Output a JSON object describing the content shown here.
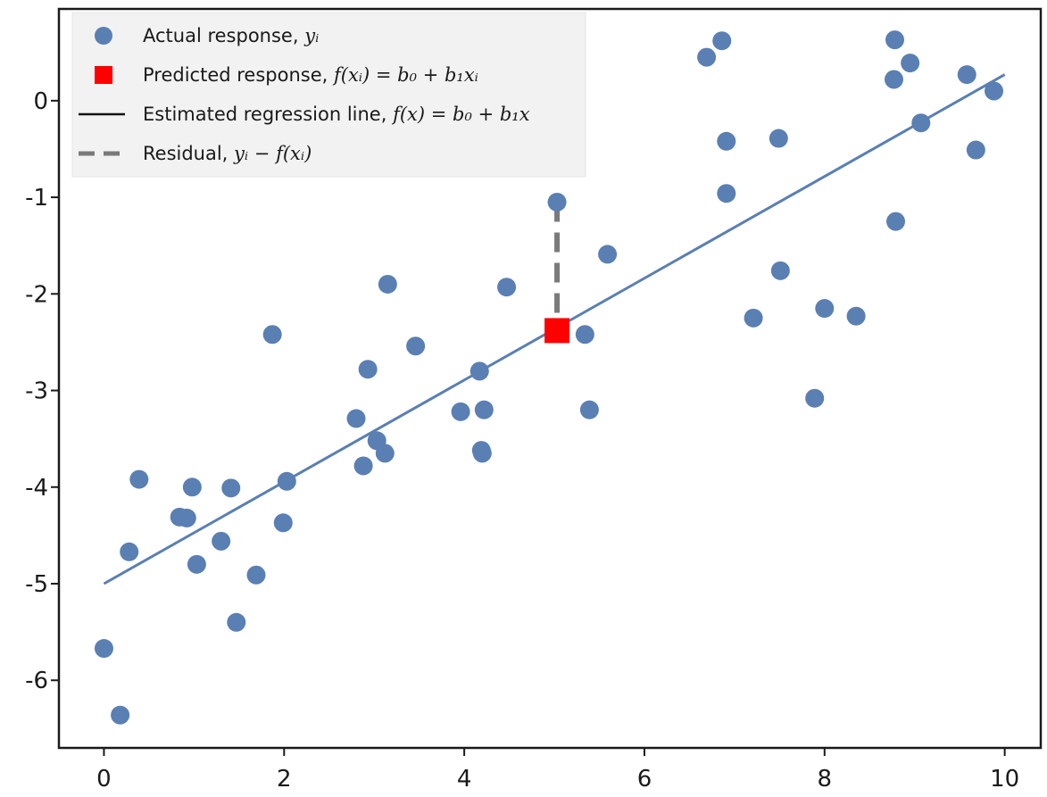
{
  "chart_data": {
    "type": "scatter",
    "title": "",
    "xlabel": "",
    "ylabel": "",
    "xlim": [
      -0.5,
      10.4
    ],
    "ylim": [
      -6.7,
      0.95
    ],
    "x_ticks": [
      0,
      2,
      4,
      6,
      8,
      10
    ],
    "y_ticks": [
      0,
      -1,
      -2,
      -3,
      -4,
      -5,
      -6
    ],
    "x_tick_labels": [
      "0",
      "2",
      "4",
      "6",
      "8",
      "10"
    ],
    "y_tick_labels": [
      "0",
      "-1",
      "-2",
      "-3",
      "-4",
      "-5",
      "-6"
    ],
    "grid": false,
    "legend_position": "top-left",
    "colors": {
      "points": "#5a7fb3",
      "predicted": "#ff0000",
      "line": "#5a7fb3",
      "residual": "#7a7a7a",
      "axes": "#1a1a1a",
      "legend_bg": "#f2f2f2"
    },
    "legend": [
      {
        "kind": "point",
        "label": "Actual response, ",
        "math": "yᵢ"
      },
      {
        "kind": "square",
        "label": "Predicted response, ",
        "math": "f(xᵢ) = b₀ + b₁xᵢ"
      },
      {
        "kind": "line",
        "label": "Estimated regression line, ",
        "math": "f(x) = b₀ + b₁x"
      },
      {
        "kind": "dashed",
        "label": "Residual, ",
        "math": "yᵢ − f(xᵢ)"
      }
    ],
    "series": [
      {
        "role": "actual",
        "points": [
          [
            0.0,
            -5.67
          ],
          [
            0.18,
            -6.36
          ],
          [
            0.28,
            -4.67
          ],
          [
            0.39,
            -3.92
          ],
          [
            0.84,
            -4.31
          ],
          [
            0.92,
            -4.32
          ],
          [
            0.98,
            -4.0
          ],
          [
            1.03,
            -4.8
          ],
          [
            1.3,
            -4.56
          ],
          [
            1.41,
            -4.01
          ],
          [
            1.47,
            -5.4
          ],
          [
            1.69,
            -4.91
          ],
          [
            1.87,
            -2.42
          ],
          [
            1.99,
            -4.37
          ],
          [
            2.03,
            -3.94
          ],
          [
            2.8,
            -3.29
          ],
          [
            2.88,
            -3.78
          ],
          [
            2.93,
            -2.78
          ],
          [
            3.03,
            -3.52
          ],
          [
            3.12,
            -3.65
          ],
          [
            3.15,
            -1.9
          ],
          [
            3.46,
            -2.54
          ],
          [
            3.96,
            -3.22
          ],
          [
            4.17,
            -2.8
          ],
          [
            4.19,
            -3.62
          ],
          [
            4.2,
            -3.65
          ],
          [
            4.22,
            -3.2
          ],
          [
            4.47,
            -1.93
          ],
          [
            5.03,
            -1.05
          ],
          [
            5.34,
            -2.42
          ],
          [
            5.39,
            -3.2
          ],
          [
            5.59,
            -1.59
          ],
          [
            6.69,
            0.45
          ],
          [
            6.86,
            0.62
          ],
          [
            6.91,
            -0.42
          ],
          [
            6.91,
            -0.96
          ],
          [
            7.21,
            -2.25
          ],
          [
            7.49,
            -0.39
          ],
          [
            7.51,
            -1.76
          ],
          [
            7.89,
            -3.08
          ],
          [
            8.0,
            -2.15
          ],
          [
            8.35,
            -2.23
          ],
          [
            8.77,
            0.22
          ],
          [
            8.78,
            0.63
          ],
          [
            8.79,
            -1.25
          ],
          [
            8.95,
            0.39
          ],
          [
            9.07,
            -0.23
          ],
          [
            9.58,
            0.27
          ],
          [
            9.68,
            -0.51
          ],
          [
            9.88,
            0.1
          ]
        ]
      },
      {
        "role": "predicted",
        "points": [
          [
            5.03,
            -2.38
          ]
        ]
      }
    ],
    "regression_line": {
      "x": [
        0,
        10
      ],
      "y": [
        -5.0,
        0.27
      ]
    },
    "residual": {
      "x": 5.03,
      "y_from": -1.05,
      "y_to": -2.38
    }
  }
}
